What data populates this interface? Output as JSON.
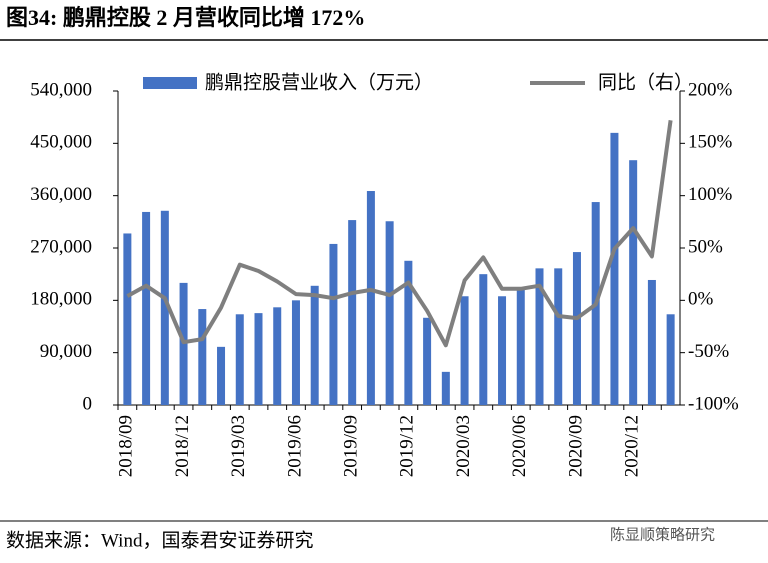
{
  "header": {
    "title": "图34: 鹏鼎控股 2 月营收同比增 172%"
  },
  "chart_data": {
    "type": "combo",
    "categories": [
      "2018/09",
      null,
      null,
      "2018/12",
      null,
      null,
      "2019/03",
      null,
      null,
      "2019/06",
      null,
      null,
      "2019/09",
      null,
      null,
      "2019/12",
      null,
      null,
      "2020/03",
      null,
      null,
      "2020/06",
      null,
      null,
      "2020/09",
      null,
      null,
      "2020/12",
      null,
      null
    ],
    "series": [
      {
        "name": "鹏鼎控股营业收入（万元）",
        "type": "bar",
        "color": "#4472c4",
        "values": [
          295000,
          332000,
          334000,
          210000,
          165000,
          100000,
          156000,
          158000,
          168000,
          180000,
          205000,
          277000,
          318000,
          368000,
          316000,
          248000,
          150000,
          57000,
          187000,
          225000,
          187000,
          198000,
          235000,
          235000,
          263000,
          349000,
          468000,
          421000,
          215000,
          156000
        ]
      },
      {
        "name": "同比（右）",
        "type": "line",
        "axis": "y2",
        "color": "#7f7f7f",
        "values": [
          4,
          14,
          2,
          -40,
          -37,
          -7,
          34,
          28,
          18,
          6,
          5,
          2,
          7,
          10,
          5,
          17,
          -10,
          -43,
          19,
          41,
          11,
          11,
          14,
          -15,
          -17,
          -4,
          49,
          69,
          42,
          172
        ]
      }
    ],
    "ylim": [
      0,
      540000
    ],
    "yticks": [
      0,
      {
        "value": 90000,
        "label": "90,000"
      },
      {
        "value": 180000,
        "label": "180,000"
      },
      {
        "value": 270000,
        "label": "270,000"
      },
      {
        "value": 360000,
        "label": "360,000"
      },
      {
        "value": 450000,
        "label": "450,000"
      },
      {
        "value": 540000,
        "label": "540,000"
      }
    ],
    "y2lim": [
      -100,
      200
    ],
    "y2ticks": [
      {
        "value": -100,
        "label": "-100%"
      },
      {
        "value": -50,
        "label": "-50%"
      },
      {
        "value": 0,
        "label": "0%"
      },
      {
        "value": 50,
        "label": "50%"
      },
      {
        "value": 100,
        "label": "100%"
      },
      {
        "value": 150,
        "label": "150%"
      },
      {
        "value": 200,
        "label": "200%"
      }
    ]
  },
  "footer": {
    "source": "数据来源：Wind，国泰君安证券研究",
    "watermark": "陈显顺策略研究"
  }
}
